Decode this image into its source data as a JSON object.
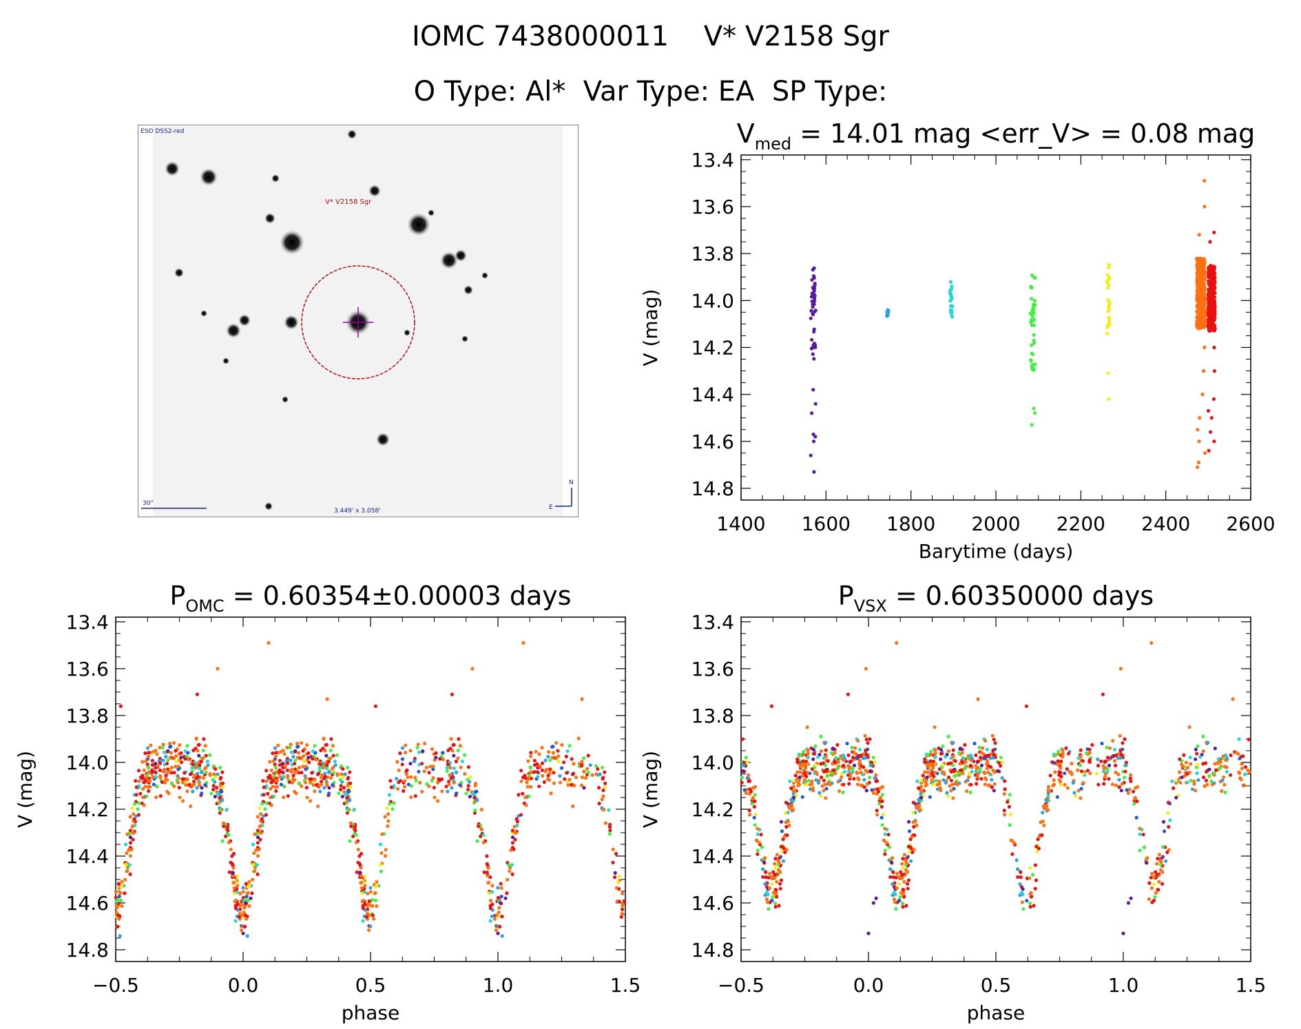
{
  "header": {
    "line1": "IOMC 7438000011    V* V2158 Sgr",
    "line2": "O Type: Al*  Var Type: EA  SP Type:"
  },
  "finder_chart": {
    "survey_label": "ESO DSS2-red",
    "target_label": "V* V2158 Sgr",
    "scale_label": "30\"",
    "fov_label": "3.449' x 3.058'",
    "north_label": "N",
    "east_label": "E"
  },
  "colors": {
    "purple": "#5a1aa0",
    "blue": "#1a5ae0",
    "sky": "#2aa0e8",
    "cyan": "#22d8d0",
    "green": "#40f040",
    "yellow": "#f0f010",
    "orange": "#ff7010",
    "red": "#e81010"
  },
  "chart_data": [
    {
      "id": "light-curve",
      "type": "scatter",
      "title_main": "V",
      "title_sub": "med",
      "title_rest": " = 14.01 mag <err_V> = 0.08 mag",
      "xlabel": "Barytime (days)",
      "ylabel": "V (mag)",
      "xlim": [
        1400,
        2600
      ],
      "ylim": [
        14.85,
        13.38
      ],
      "xticks": [
        1400,
        1600,
        1800,
        2000,
        2200,
        2400,
        2600
      ],
      "yticks": [
        13.4,
        13.6,
        13.8,
        14.0,
        14.2,
        14.4,
        14.6,
        14.8
      ],
      "series": [
        {
          "name": "epoch-1",
          "color": "purple",
          "x_center": 1570,
          "x_spread": 6,
          "n": 40,
          "core_min": 13.86,
          "core_max": 14.25,
          "outliers": [
            14.38,
            14.44,
            14.48,
            14.57,
            14.58,
            14.6,
            14.66,
            14.73
          ]
        },
        {
          "name": "epoch-2",
          "color": "sky",
          "x_center": 1745,
          "x_spread": 2,
          "n": 8,
          "core_min": 14.02,
          "core_max": 14.07,
          "outliers": []
        },
        {
          "name": "epoch-3",
          "color": "cyan",
          "x_center": 1895,
          "x_spread": 3,
          "n": 22,
          "core_min": 13.92,
          "core_max": 14.07,
          "outliers": []
        },
        {
          "name": "epoch-4",
          "color": "green",
          "x_center": 2087,
          "x_spread": 6,
          "n": 40,
          "core_min": 13.89,
          "core_max": 14.3,
          "outliers": [
            14.46,
            14.48,
            14.53
          ]
        },
        {
          "name": "epoch-5",
          "color": "yellow",
          "x_center": 2265,
          "x_spread": 3,
          "n": 25,
          "core_min": 13.84,
          "core_max": 14.17,
          "outliers": [
            14.31,
            14.42
          ]
        },
        {
          "name": "epoch-6",
          "color": "orange",
          "x_center": 2483,
          "x_spread": 10,
          "n": 420,
          "core_min": 13.82,
          "core_max": 14.12,
          "outliers": [
            13.49,
            13.6,
            13.72,
            14.2,
            14.3,
            14.4,
            14.5,
            14.55,
            14.6,
            14.65,
            14.69,
            14.71
          ]
        },
        {
          "name": "epoch-7",
          "color": "red",
          "x_center": 2508,
          "x_spread": 8,
          "n": 360,
          "core_min": 13.85,
          "core_max": 14.13,
          "outliers": [
            13.71,
            13.75,
            14.2,
            14.3,
            14.42,
            14.47,
            14.5,
            14.56,
            14.6,
            14.64
          ]
        }
      ]
    },
    {
      "id": "phase-omc",
      "type": "scatter",
      "title_main": "P",
      "title_sub": "OMC",
      "title_rest": " = 0.60354±0.00003 days",
      "xlabel": "phase",
      "ylabel": "V (mag)",
      "xlim": [
        -0.5,
        1.5
      ],
      "ylim": [
        14.85,
        13.38
      ],
      "xticks": [
        -0.5,
        0.0,
        0.5,
        1.0,
        1.5
      ],
      "xticklabels": [
        "−0.5",
        "0.0",
        "0.5",
        "1.0",
        "1.5"
      ],
      "yticks": [
        13.4,
        13.6,
        13.8,
        14.0,
        14.2,
        14.4,
        14.6,
        14.8
      ],
      "model": {
        "period": 0.60354,
        "base": 14.0,
        "primary_phase": 0.0,
        "primary_depth": 0.68,
        "primary_width": 0.055,
        "secondary_phase": 0.5,
        "secondary_depth": 0.64,
        "secondary_width": 0.05,
        "noise": 0.055
      },
      "points_per_cycle": 420,
      "outliers": [
        {
          "x": 0.1,
          "y": 13.49,
          "color": "orange"
        },
        {
          "x": -0.1,
          "y": 13.6,
          "color": "orange"
        },
        {
          "x": -0.18,
          "y": 13.71,
          "color": "red"
        },
        {
          "x": -0.48,
          "y": 13.76,
          "color": "red"
        },
        {
          "x": 0.33,
          "y": 13.73,
          "color": "orange"
        },
        {
          "x": 0.0,
          "y": 14.73,
          "color": "purple"
        },
        {
          "x": 0.01,
          "y": 14.6,
          "color": "purple"
        },
        {
          "x": 0.03,
          "y": 14.58,
          "color": "purple"
        }
      ]
    },
    {
      "id": "phase-vsx",
      "type": "scatter",
      "title_main": "P",
      "title_sub": "VSX",
      "title_rest": " = 0.60350000 days",
      "xlabel": "phase",
      "ylabel": "V (mag)",
      "xlim": [
        -0.5,
        1.5
      ],
      "ylim": [
        14.85,
        13.38
      ],
      "xticks": [
        -0.5,
        0.0,
        0.5,
        1.0,
        1.5
      ],
      "xticklabels": [
        "−0.5",
        "0.0",
        "0.5",
        "1.0",
        "1.5"
      ],
      "yticks": [
        13.4,
        13.6,
        13.8,
        14.0,
        14.2,
        14.4,
        14.6,
        14.8
      ],
      "model": {
        "period": 0.6035,
        "base": 14.0,
        "primary_phase": 0.12,
        "primary_depth": 0.55,
        "primary_width": 0.05,
        "secondary_phase": 0.62,
        "secondary_depth": 0.62,
        "secondary_width": 0.05,
        "noise": 0.055
      },
      "points_per_cycle": 420,
      "outliers": [
        {
          "x": 0.11,
          "y": 13.49,
          "color": "orange"
        },
        {
          "x": -0.01,
          "y": 13.6,
          "color": "orange"
        },
        {
          "x": -0.08,
          "y": 13.71,
          "color": "red"
        },
        {
          "x": -0.38,
          "y": 13.76,
          "color": "red"
        },
        {
          "x": 0.43,
          "y": 13.73,
          "color": "orange"
        },
        {
          "x": 0.0,
          "y": 14.73,
          "color": "purple"
        },
        {
          "x": 0.02,
          "y": 14.6,
          "color": "purple"
        },
        {
          "x": 0.03,
          "y": 14.58,
          "color": "purple"
        }
      ]
    }
  ]
}
